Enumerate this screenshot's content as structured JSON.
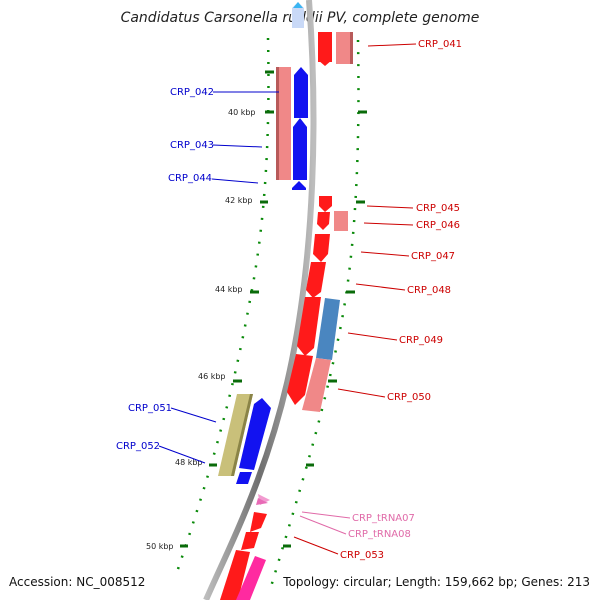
{
  "title": "Candidatus Carsonella ruddii PV, complete genome",
  "footer": {
    "accession": "Accession: NC_008512",
    "summary": "Topology: circular; Length: 159,662 bp; Genes: 213"
  },
  "colors": {
    "forward_cds": "#ff1a1a",
    "forward_cds_light": "#f08888",
    "reverse_cds": "#1212f0",
    "reverse_cds_light": "#f08888",
    "trna": "#f29bd0",
    "olive": "#c9c07a",
    "steel": "#4a86c0",
    "magenta": "#ff2aa0",
    "backbone": "#8c8c8c",
    "ticks": "#0a6b0a",
    "label_forward": "#cc0000",
    "label_reverse": "#0000cc",
    "label_trna": "#e06aa8"
  },
  "scale_ticks": [
    "40 kbp",
    "42 kbp",
    "44 kbp",
    "46 kbp",
    "48 kbp",
    "50 kbp"
  ],
  "gene_labels_forward": [
    "CRP_041",
    "CRP_045",
    "CRP_046",
    "CRP_047",
    "CRP_048",
    "CRP_049",
    "CRP_050",
    "CRP_053"
  ],
  "gene_labels_reverse": [
    "CRP_042",
    "CRP_043",
    "CRP_044",
    "CRP_051",
    "CRP_052"
  ],
  "trna_labels": [
    "CRP_tRNA07",
    "CRP_tRNA08"
  ]
}
